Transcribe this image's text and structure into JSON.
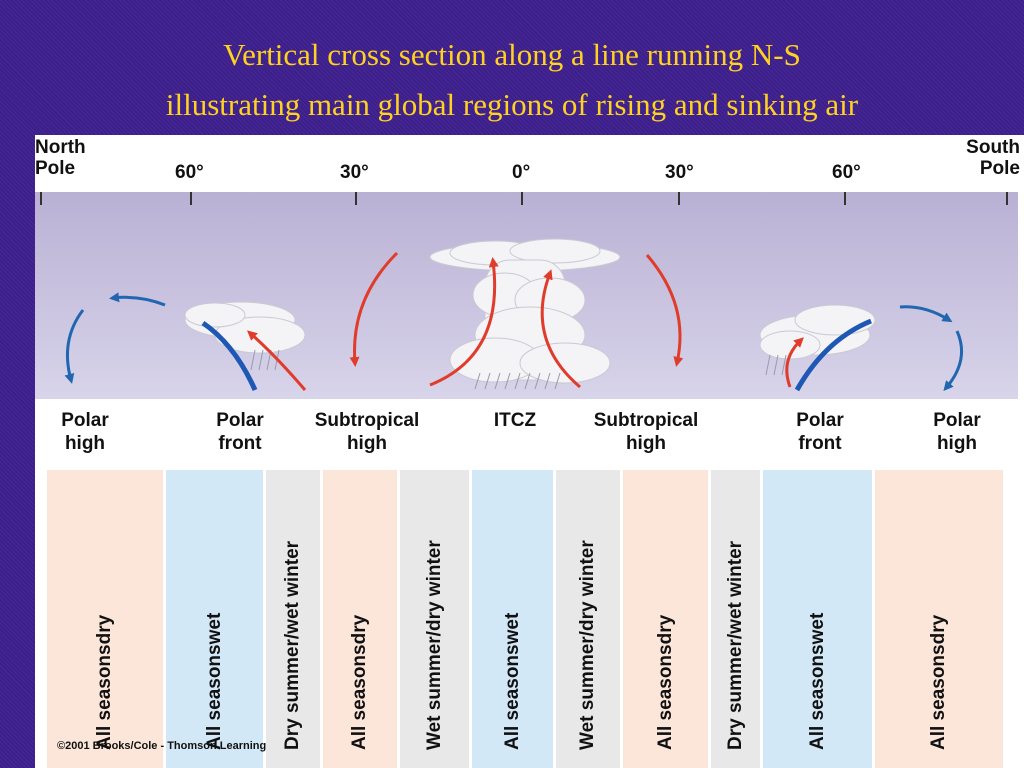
{
  "title": {
    "line1": "Vertical cross section along a line running N-S",
    "line2": "illustrating main global regions of rising and sinking air"
  },
  "poles": {
    "north": [
      "North",
      "Pole"
    ],
    "south": [
      "South",
      "Pole"
    ]
  },
  "latitudes": [
    "60°",
    "30°",
    "0°",
    "30°",
    "60°"
  ],
  "regions": [
    [
      "Polar",
      "high"
    ],
    [
      "Polar",
      "front"
    ],
    [
      "Subtropical",
      "high"
    ],
    [
      "ITCZ"
    ],
    [
      "Subtropical",
      "high"
    ],
    [
      "Polar",
      "front"
    ],
    [
      "Polar",
      "high"
    ]
  ],
  "climate_bands": [
    {
      "text": "All seasonsdry",
      "color": "#fce6da"
    },
    {
      "text": "All seasonswet",
      "color": "#d2e8f7"
    },
    {
      "text": "Dry summer/wet winter",
      "color": "#e8e8e8"
    },
    {
      "text": "All seasonsdry",
      "color": "#fce6da"
    },
    {
      "text": "Wet summer/dry winter",
      "color": "#e8e8e8"
    },
    {
      "text": "All seasonswet",
      "color": "#d2e8f7"
    },
    {
      "text": "Wet summer/dry winter",
      "color": "#e8e8e8"
    },
    {
      "text": "All seasonsdry",
      "color": "#fce6da"
    },
    {
      "text": "Dry summer/wet winter",
      "color": "#e8e8e8"
    },
    {
      "text": "All seasonswet",
      "color": "#d2e8f7"
    },
    {
      "text": "All seasonsdry",
      "color": "#fce6da"
    }
  ],
  "copyright": "©2001 Brooks/Cole - Thomson Learning",
  "colors": {
    "rising_arrow": "#e03c2c",
    "polar_arrow": "#2166b0",
    "front": "#1f57b5"
  }
}
